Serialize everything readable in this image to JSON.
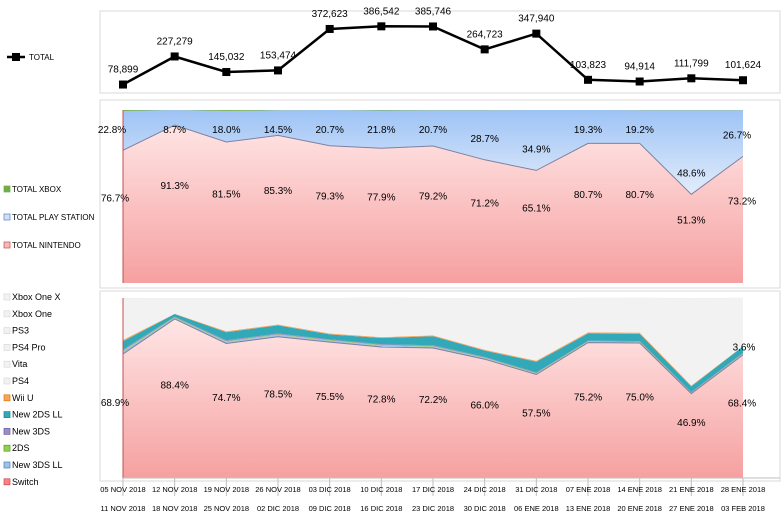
{
  "chart_data": [
    {
      "type": "line",
      "legend": [
        "TOTAL"
      ],
      "categories": [
        [
          "05 NOV 2018",
          "11 NOV 2018"
        ],
        [
          "12 NOV 2018",
          "18 NOV 2018"
        ],
        [
          "19 NOV 2018",
          "25 NOV 2018"
        ],
        [
          "26 NOV 2018",
          "02 DIC 2018"
        ],
        [
          "03 DIC 2018",
          "09 DIC 2018"
        ],
        [
          "10 DIC 2018",
          "16 DIC 2018"
        ],
        [
          "17 DIC 2018",
          "23 DIC 2018"
        ],
        [
          "24 DIC 2018",
          "30 DIC 2018"
        ],
        [
          "31 DIC 2018",
          "06 ENE 2018"
        ],
        [
          "07 ENE 2018",
          "13 ENE 2018"
        ],
        [
          "14 ENE 2018",
          "20 ENE 2018"
        ],
        [
          "21 ENE 2018",
          "27 ENE 2018"
        ],
        [
          "28 ENE 2018",
          "03 FEB 2018"
        ]
      ],
      "series": [
        {
          "name": "TOTAL",
          "values": [
            78899,
            227279,
            145032,
            153474,
            372623,
            386542,
            385746,
            264723,
            347940,
            103823,
            94914,
            111799,
            101624
          ],
          "labels": [
            "78,899",
            "227,279",
            "145,032",
            "153,474",
            "372,623",
            "386,542",
            "385,746",
            "264,723",
            "347,940",
            "103,823",
            "94,914",
            "111,799",
            "101,624"
          ]
        }
      ],
      "ylim": [
        50000,
        420000
      ]
    },
    {
      "type": "area",
      "stacked": "100%",
      "legend": [
        "TOTAL XBOX",
        "TOTAL PLAY STATION",
        "TOTAL NINTENDO"
      ],
      "series": [
        {
          "name": "TOTAL XBOX",
          "values": [
            0.5,
            0,
            0.5,
            0.2,
            0,
            0.3,
            0.1,
            0.1,
            0,
            0,
            0.1,
            0.1,
            0.1
          ]
        },
        {
          "name": "TOTAL PLAY STATION",
          "values": [
            22.8,
            8.7,
            18.0,
            14.5,
            20.7,
            21.8,
            20.7,
            28.7,
            34.9,
            19.3,
            19.2,
            48.6,
            26.7
          ],
          "labels": [
            "22.8%",
            "8.7%",
            "18.0%",
            "14.5%",
            "20.7%",
            "21.8%",
            "20.7%",
            "28.7%",
            "34.9%",
            "19.3%",
            "19.2%",
            "48.6%",
            "26.7%"
          ]
        },
        {
          "name": "TOTAL NINTENDO",
          "values": [
            76.7,
            91.3,
            81.5,
            85.3,
            79.3,
            77.9,
            79.2,
            71.2,
            65.1,
            80.7,
            80.7,
            51.3,
            73.2
          ],
          "labels": [
            "76.7%",
            "91.3%",
            "81.5%",
            "85.3%",
            "79.3%",
            "77.9%",
            "79.2%",
            "71.2%",
            "65.1%",
            "80.7%",
            "80.7%",
            "51.3%",
            "73.2%"
          ]
        }
      ],
      "ylim": [
        0,
        100
      ]
    },
    {
      "type": "area",
      "stacked": "100%",
      "legend": [
        "Xbox One X",
        "Xbox One",
        "PS3",
        "PS4 Pro",
        "Vita",
        "PS4",
        "Wii U",
        "New 2DS LL",
        "New 3DS",
        "2DS",
        "New 3DS LL",
        "Switch"
      ],
      "stack_order_bottom_to_top": [
        "Switch",
        "New 3DS LL",
        "2DS",
        "New 3DS",
        "New 2DS LL",
        "Wii U",
        "PS4",
        "Vita",
        "PS4 Pro",
        "PS3",
        "Xbox One",
        "Xbox One X"
      ],
      "series": [
        {
          "name": "Switch",
          "values": [
            68.9,
            88.4,
            74.7,
            78.5,
            75.5,
            72.8,
            72.2,
            66.0,
            57.5,
            75.2,
            75.0,
            46.9,
            68.4
          ],
          "labels": [
            "68.9%",
            "88.4%",
            "74.7%",
            "78.5%",
            "75.5%",
            "72.8%",
            "72.2%",
            "66.0%",
            "57.5%",
            "75.2%",
            "75.0%",
            "46.9%",
            "68.4%"
          ]
        },
        {
          "name": "New 3DS LL",
          "values": [
            1.5,
            0.5,
            1.0,
            1.0,
            0.8,
            0.8,
            0.8,
            0.6,
            0.5,
            0.5,
            0.5,
            0.3,
            0.5
          ]
        },
        {
          "name": "2DS",
          "values": [
            0.4,
            0.3,
            0.3,
            0.3,
            0.3,
            0.3,
            0.3,
            0.3,
            0.3,
            0.3,
            0.3,
            0.2,
            0.2
          ]
        },
        {
          "name": "New 3DS",
          "values": [
            0.6,
            0.4,
            0.5,
            0.5,
            0.4,
            0.4,
            0.4,
            0.4,
            0.3,
            0.3,
            0.3,
            0.3,
            0.4
          ]
        },
        {
          "name": "New 2DS LL",
          "values": [
            4.5,
            1.5,
            4.5,
            4.5,
            2.8,
            3.5,
            5.0,
            3.5,
            6.0,
            4.0,
            4.0,
            3.2,
            3.6
          ],
          "labels": [
            "",
            "",
            "",
            "",
            "",
            "",
            "",
            "",
            "",
            "",
            "",
            "",
            "3.6%"
          ]
        },
        {
          "name": "Wii U",
          "values": [
            0.8,
            0.2,
            0.5,
            0.5,
            0.5,
            0.5,
            0.5,
            0.5,
            0.5,
            0.6,
            0.7,
            0.5,
            0.2
          ]
        },
        {
          "name": "PS4",
          "values": [
            22.5,
            8.6,
            17.5,
            14.2,
            19.4,
            21.3,
            20.5,
            28.3,
            34.5,
            19.0,
            19.0,
            48.2,
            26.5
          ]
        },
        {
          "name": "Vita",
          "values": [
            0.2,
            0,
            0.2,
            0.1,
            0.2,
            0.2,
            0.1,
            0.2,
            0.2,
            0.1,
            0.1,
            0.2,
            0.1
          ]
        },
        {
          "name": "PS4 Pro",
          "values": [
            0.1,
            0.1,
            0.3,
            0.2,
            0.1,
            0.2,
            0.1,
            0.1,
            0.1,
            0.1,
            0.1,
            0.1,
            0.1
          ]
        },
        {
          "name": "PS3",
          "values": [
            0,
            0,
            0,
            0,
            0,
            0,
            0,
            0,
            0,
            0,
            0,
            0,
            0
          ]
        },
        {
          "name": "Xbox One",
          "values": [
            0.4,
            0,
            0.4,
            0.1,
            0,
            0.2,
            0.1,
            0.1,
            0,
            0,
            0.1,
            0.1,
            0.1
          ]
        },
        {
          "name": "Xbox One X",
          "values": [
            0.1,
            0,
            0.1,
            0.1,
            0,
            0.1,
            0,
            0,
            0,
            0,
            0,
            0,
            0
          ]
        }
      ],
      "ylim": [
        0,
        100
      ]
    }
  ],
  "colors": {
    "total_line": "#000000",
    "xbox": "#70ad47",
    "playstation_fill_top": "#9dc3f5",
    "playstation_fill_bottom": "#dbe9fb",
    "playstation_line": "#5b7fc0",
    "nintendo_fill_top": "#ffdede",
    "nintendo_fill_bottom": "#f8a0a0",
    "nintendo_line": "#8080a0",
    "plot_background": "#f2f2f2",
    "new_2ds_ll": "#31a9b8",
    "wii_u": "#f4a460",
    "new_3ds": "#9b8ec4",
    "two_ds": "#92d050",
    "new_3ds_ll": "#9dc3e6",
    "switch_legend": "#ff8080"
  }
}
